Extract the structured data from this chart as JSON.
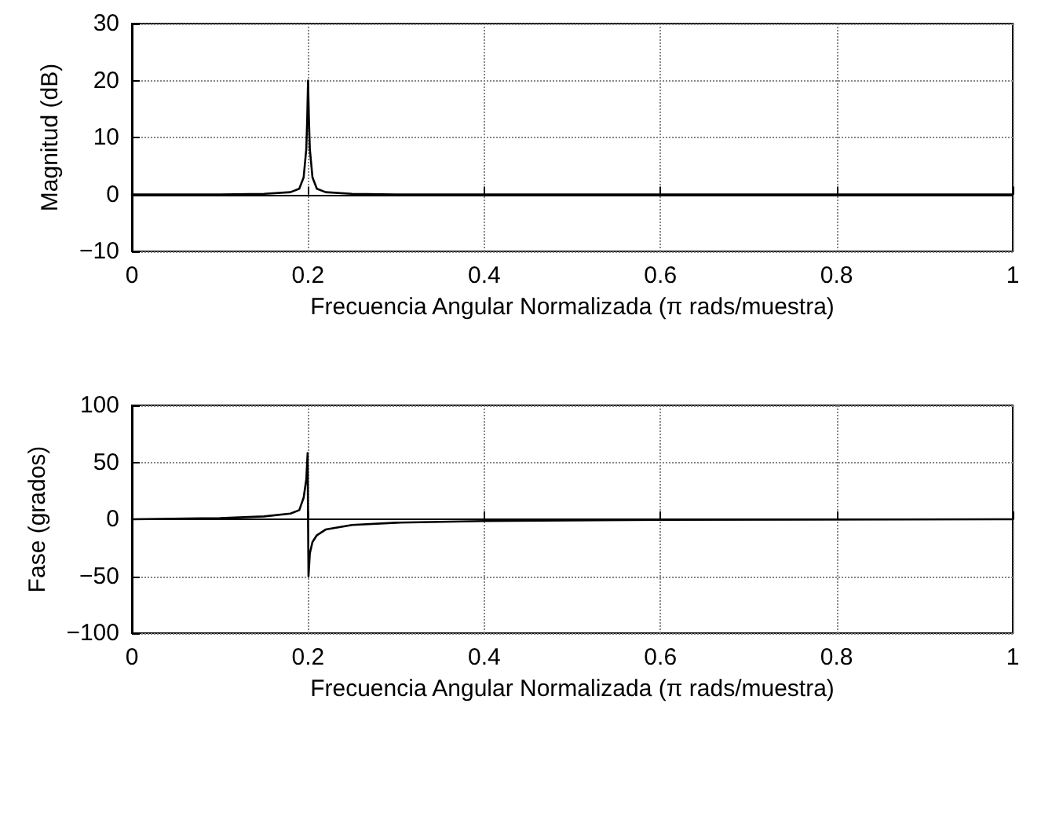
{
  "chart_data": [
    {
      "type": "line",
      "xlabel": "Frecuencia Angular Normalizada (π rads/muestra)",
      "ylabel": "Magnitud (dB)",
      "x": [
        0,
        0.1,
        0.15,
        0.18,
        0.19,
        0.195,
        0.198,
        0.199,
        0.2,
        0.201,
        0.202,
        0.205,
        0.21,
        0.22,
        0.25,
        0.3,
        0.5,
        1
      ],
      "series": [
        {
          "color": "#000000",
          "values": [
            0,
            0,
            0.1,
            0.4,
            1,
            3,
            8,
            13,
            20,
            13,
            8,
            3,
            1,
            0.4,
            0.1,
            0,
            0,
            0
          ]
        }
      ],
      "xlim": [
        0,
        1
      ],
      "xticks": [
        0,
        0.2,
        0.4,
        0.6,
        0.8,
        1
      ],
      "ylim": [
        -10,
        30
      ],
      "yticks": [
        {
          "value": -10,
          "label": "−10"
        },
        0,
        10,
        20,
        30
      ],
      "grid": true,
      "marker": "none",
      "line_style": "solid"
    },
    {
      "type": "line",
      "xlabel": "Frecuencia Angular Normalizada (π rads/muestra)",
      "ylabel": "Fase (grados)",
      "x": [
        0,
        0.1,
        0.15,
        0.18,
        0.19,
        0.195,
        0.198,
        0.1995,
        0.2,
        0.2005,
        0.202,
        0.205,
        0.21,
        0.22,
        0.25,
        0.3,
        0.4,
        0.6,
        1
      ],
      "series": [
        {
          "color": "#000000",
          "values": [
            0,
            1,
            2.5,
            5,
            8,
            19,
            35,
            58,
            0,
            -50,
            -30,
            -20,
            -14,
            -9,
            -5,
            -3,
            -1.5,
            -0.5,
            0
          ]
        }
      ],
      "xlim": [
        0,
        1
      ],
      "xticks": [
        0,
        0.2,
        0.4,
        0.6,
        0.8,
        1
      ],
      "ylim": [
        -100,
        100
      ],
      "yticks": [
        {
          "value": -100,
          "label": "−100"
        },
        {
          "value": -50,
          "label": "−50"
        },
        0,
        50,
        100
      ],
      "grid": true,
      "marker": "none",
      "line_style": "solid"
    }
  ]
}
